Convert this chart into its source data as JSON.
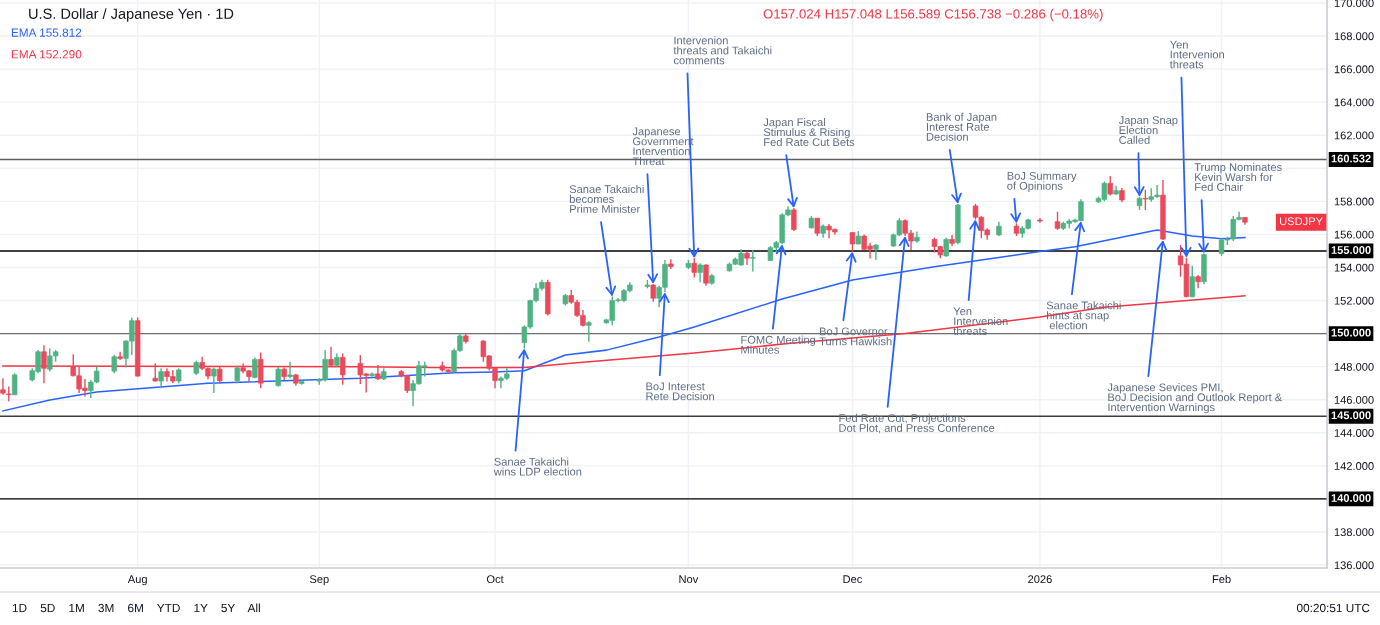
{
  "chart_data": {
    "type": "candlestick",
    "title": "U.S. Dollar / Japanese Yen · 1D",
    "subtitle": "O157.024 H157.048 L156.589 C156.738 −0.286 (−0.18%)",
    "x": [
      "2025-07-09",
      "2025-07-10",
      "2025-07-11",
      "2025-07-14",
      "2025-07-15",
      "2025-07-16",
      "2025-07-17",
      "2025-07-18",
      "2025-07-21",
      "2025-07-22",
      "2025-07-23",
      "2025-07-24",
      "2025-07-25",
      "2025-07-28",
      "2025-07-29",
      "2025-07-30",
      "2025-07-31",
      "2025-08-01",
      "2025-08-04",
      "2025-08-05",
      "2025-08-06",
      "2025-08-07",
      "2025-08-08",
      "2025-08-11",
      "2025-08-12",
      "2025-08-13",
      "2025-08-14",
      "2025-08-15",
      "2025-08-18",
      "2025-08-19",
      "2025-08-20",
      "2025-08-21",
      "2025-08-22",
      "2025-08-25",
      "2025-08-26",
      "2025-08-27",
      "2025-08-28",
      "2025-08-29",
      "2025-09-01",
      "2025-09-02",
      "2025-09-03",
      "2025-09-04",
      "2025-09-05",
      "2025-09-08",
      "2025-09-09",
      "2025-09-10",
      "2025-09-11",
      "2025-09-12",
      "2025-09-15",
      "2025-09-16",
      "2025-09-17",
      "2025-09-18",
      "2025-09-19",
      "2025-09-22",
      "2025-09-23",
      "2025-09-24",
      "2025-09-25",
      "2025-09-26",
      "2025-09-29",
      "2025-09-30",
      "2025-10-01",
      "2025-10-02",
      "2025-10-03",
      "2025-10-06",
      "2025-10-07",
      "2025-10-08",
      "2025-10-09",
      "2025-10-10",
      "2025-10-13",
      "2025-10-14",
      "2025-10-15",
      "2025-10-16",
      "2025-10-17",
      "2025-10-20",
      "2025-10-21",
      "2025-10-22",
      "2025-10-23",
      "2025-10-24",
      "2025-10-27",
      "2025-10-28",
      "2025-10-29",
      "2025-10-30",
      "2025-10-31",
      "2025-11-03",
      "2025-11-04",
      "2025-11-05",
      "2025-11-06",
      "2025-11-07",
      "2025-11-10",
      "2025-11-11",
      "2025-11-12",
      "2025-11-13",
      "2025-11-14",
      "2025-11-17",
      "2025-11-18",
      "2025-11-19",
      "2025-11-20",
      "2025-11-21",
      "2025-11-24",
      "2025-11-25",
      "2025-11-26",
      "2025-11-27",
      "2025-11-28",
      "2025-12-01",
      "2025-12-02",
      "2025-12-03",
      "2025-12-04",
      "2025-12-05",
      "2025-12-08",
      "2025-12-09",
      "2025-12-10",
      "2025-12-11",
      "2025-12-12",
      "2025-12-15",
      "2025-12-16",
      "2025-12-17",
      "2025-12-18",
      "2025-12-19",
      "2025-12-22",
      "2025-12-23",
      "2025-12-24",
      "2025-12-26",
      "2025-12-29",
      "2025-12-30",
      "2025-12-31",
      "2026-01-02",
      "2026-01-05",
      "2026-01-06",
      "2026-01-07",
      "2026-01-08",
      "2026-01-09",
      "2026-01-12",
      "2026-01-13",
      "2026-01-14",
      "2026-01-15",
      "2026-01-16",
      "2026-01-19",
      "2026-01-20",
      "2026-01-21",
      "2026-01-22",
      "2026-01-23",
      "2026-01-26",
      "2026-01-27",
      "2026-01-28",
      "2026-01-29",
      "2026-01-30",
      "2026-02-02",
      "2026-02-03",
      "2026-02-04",
      "2026-02-05",
      "2026-02-06"
    ],
    "ohlc": [
      [
        146.6,
        147.3,
        146.3,
        146.4
      ],
      [
        146.35,
        146.8,
        145.9,
        146.3
      ],
      [
        146.3,
        147.6,
        146.3,
        147.5
      ],
      [
        147.2,
        147.9,
        147.1,
        147.75
      ],
      [
        147.7,
        149.0,
        147.6,
        148.9
      ],
      [
        148.9,
        149.3,
        147.0,
        147.9
      ],
      [
        147.85,
        149.1,
        147.7,
        148.65
      ],
      [
        148.65,
        149.0,
        148.3,
        148.9
      ],
      [
        148.0,
        148.75,
        147.4,
        147.45
      ],
      [
        147.45,
        148.05,
        146.4,
        146.65
      ],
      [
        146.7,
        147.25,
        146.2,
        146.55
      ],
      [
        146.55,
        147.2,
        146.1,
        147.07
      ],
      [
        147.07,
        148.0,
        147.0,
        147.73
      ],
      [
        147.73,
        148.7,
        147.6,
        148.6
      ],
      [
        148.6,
        148.9,
        148.4,
        148.5
      ],
      [
        148.5,
        149.6,
        147.95,
        149.55
      ],
      [
        149.55,
        150.96,
        148.7,
        150.78
      ],
      [
        150.78,
        150.98,
        147.4,
        147.43
      ],
      [
        147.3,
        148.2,
        147.1,
        147.13
      ],
      [
        147.13,
        147.9,
        146.7,
        147.7
      ],
      [
        147.7,
        147.9,
        147.1,
        147.4
      ],
      [
        147.4,
        147.8,
        147.0,
        147.13
      ],
      [
        147.13,
        147.9,
        147.0,
        147.8
      ],
      [
        147.6,
        148.35,
        147.5,
        148.25
      ],
      [
        148.25,
        148.6,
        147.8,
        147.9
      ],
      [
        147.9,
        147.95,
        147.23,
        147.43
      ],
      [
        147.43,
        147.95,
        146.4,
        147.85
      ],
      [
        147.85,
        148.0,
        147.0,
        147.15
      ],
      [
        147.15,
        148.05,
        147.0,
        147.93
      ],
      [
        147.93,
        148.2,
        147.6,
        147.73
      ],
      [
        147.75,
        147.8,
        147.1,
        147.4
      ],
      [
        147.35,
        148.55,
        147.3,
        148.44
      ],
      [
        148.44,
        148.85,
        146.7,
        147.0
      ],
      [
        146.85,
        148.0,
        146.8,
        147.85
      ],
      [
        147.85,
        147.95,
        147.2,
        147.4
      ],
      [
        147.4,
        148.3,
        147.3,
        147.5
      ],
      [
        147.5,
        147.55,
        146.85,
        147.0
      ],
      [
        146.98,
        147.2,
        146.9,
        147.1
      ],
      [
        147.13,
        147.3,
        146.9,
        147.23
      ],
      [
        147.2,
        149.0,
        147.1,
        148.44
      ],
      [
        148.44,
        149.2,
        148.0,
        148.08
      ],
      [
        148.08,
        148.8,
        148.0,
        148.56
      ],
      [
        148.56,
        148.8,
        146.9,
        147.5
      ],
      [
        148.2,
        148.7,
        146.95,
        147.5
      ],
      [
        147.56,
        147.6,
        146.43,
        147.46
      ],
      [
        147.46,
        147.65,
        147.4,
        147.56
      ],
      [
        147.56,
        148.1,
        147.2,
        147.26
      ],
      [
        147.26,
        147.9,
        147.2,
        147.7
      ],
      [
        147.7,
        147.8,
        147.35,
        147.44
      ],
      [
        147.46,
        147.5,
        146.4,
        146.55
      ],
      [
        146.55,
        147.2,
        145.6,
        146.97
      ],
      [
        146.97,
        148.35,
        146.9,
        148.06
      ],
      [
        148.0,
        148.3,
        147.4,
        148.06
      ],
      [
        148.05,
        148.3,
        147.7,
        147.8
      ],
      [
        147.8,
        147.85,
        147.65,
        147.7
      ],
      [
        147.7,
        149.1,
        147.6,
        148.97
      ],
      [
        148.97,
        150.02,
        148.9,
        149.86
      ],
      [
        149.86,
        150.02,
        149.4,
        149.52
      ],
      [
        149.55,
        149.6,
        148.3,
        148.6
      ],
      [
        148.65,
        148.7,
        147.76,
        147.9
      ],
      [
        147.9,
        147.95,
        146.7,
        147.16
      ],
      [
        147.16,
        147.4,
        146.7,
        147.3
      ],
      [
        147.3,
        147.9,
        147.2,
        147.56
      ],
      [
        149.46,
        150.5,
        149.1,
        150.4
      ],
      [
        150.4,
        152.05,
        150.3,
        152.0
      ],
      [
        152.0,
        153.05,
        151.9,
        152.74
      ],
      [
        152.74,
        153.25,
        152.6,
        153.1
      ],
      [
        153.1,
        153.25,
        151.1,
        151.19
      ],
      [
        151.8,
        152.4,
        151.7,
        152.3
      ],
      [
        152.3,
        152.64,
        151.8,
        151.9
      ],
      [
        151.9,
        152.04,
        151.0,
        151.1
      ],
      [
        151.1,
        151.43,
        150.43,
        150.5
      ],
      [
        150.5,
        150.75,
        149.5,
        150.66
      ],
      [
        150.66,
        150.9,
        150.6,
        150.83
      ],
      [
        150.8,
        152.24,
        150.5,
        152.0
      ],
      [
        152.0,
        152.15,
        151.9,
        152.04
      ],
      [
        152.0,
        152.7,
        151.9,
        152.6
      ],
      [
        152.6,
        153.1,
        152.5,
        152.94
      ],
      [
        152.85,
        153.25,
        152.74,
        152.94
      ],
      [
        152.94,
        153.0,
        151.93,
        152.14
      ],
      [
        152.14,
        152.9,
        151.6,
        152.8
      ],
      [
        152.8,
        154.45,
        152.5,
        154.19
      ],
      [
        154.21,
        154.5,
        153.9,
        154.05
      ],
      [
        154.01,
        154.45,
        153.9,
        154.25
      ],
      [
        154.25,
        154.56,
        153.4,
        153.7
      ],
      [
        153.7,
        154.25,
        153.1,
        154.15
      ],
      [
        154.15,
        154.2,
        152.9,
        153.05
      ],
      [
        153.05,
        153.6,
        152.95,
        153.5
      ],
      [
        153.8,
        154.3,
        153.75,
        154.2
      ],
      [
        154.2,
        154.6,
        154.15,
        154.5
      ],
      [
        154.15,
        155.1,
        154.1,
        154.86
      ],
      [
        154.86,
        154.96,
        154.15,
        154.56
      ],
      [
        154.56,
        155.05,
        153.75,
        154.6
      ],
      [
        154.42,
        155.3,
        154.4,
        155.2
      ],
      [
        155.2,
        155.6,
        154.9,
        155.5
      ],
      [
        155.5,
        157.28,
        155.4,
        157.18
      ],
      [
        157.18,
        157.7,
        157.1,
        157.48
      ],
      [
        157.48,
        157.6,
        156.2,
        156.3
      ],
      [
        156.4,
        157.1,
        156.35,
        156.98
      ],
      [
        156.98,
        157.0,
        155.9,
        156.07
      ],
      [
        156.07,
        156.6,
        155.8,
        156.5
      ],
      [
        156.5,
        156.63,
        155.77,
        156.27
      ],
      [
        156.3,
        156.35,
        156.0,
        156.15
      ],
      [
        156.11,
        156.15,
        154.96,
        155.42
      ],
      [
        155.42,
        156.2,
        155.4,
        155.9
      ],
      [
        155.9,
        156.0,
        155.05,
        155.1
      ],
      [
        155.3,
        155.5,
        154.55,
        155.1
      ],
      [
        155.1,
        155.4,
        154.46,
        155.36
      ],
      [
        155.3,
        156.05,
        155.25,
        155.97
      ],
      [
        155.97,
        156.98,
        155.9,
        156.83
      ],
      [
        156.83,
        156.92,
        155.9,
        156.07
      ],
      [
        156.07,
        156.27,
        155.05,
        155.6
      ],
      [
        155.6,
        156.17,
        155.5,
        155.83
      ],
      [
        155.7,
        155.8,
        154.9,
        155.26
      ],
      [
        155.26,
        155.3,
        154.56,
        154.76
      ],
      [
        154.7,
        155.8,
        154.65,
        155.7
      ],
      [
        155.7,
        155.97,
        155.3,
        155.46
      ],
      [
        155.5,
        157.85,
        155.4,
        157.78
      ],
      [
        157.72,
        157.85,
        156.9,
        157.04
      ],
      [
        157.04,
        157.1,
        155.77,
        156.23
      ],
      [
        156.27,
        156.37,
        155.67,
        155.97
      ],
      [
        155.97,
        156.77,
        155.9,
        156.5
      ],
      [
        156.5,
        156.67,
        155.9,
        156.07
      ],
      [
        156.07,
        156.5,
        155.8,
        156.37
      ],
      [
        156.37,
        156.95,
        156.3,
        156.88
      ],
      [
        156.87,
        157.0,
        156.7,
        156.81
      ],
      [
        156.77,
        157.37,
        156.27,
        156.37
      ],
      [
        156.37,
        156.77,
        156.27,
        156.67
      ],
      [
        156.67,
        156.91,
        156.37,
        156.81
      ],
      [
        156.77,
        156.95,
        156.7,
        156.87
      ],
      [
        156.83,
        158.12,
        156.8,
        157.98
      ],
      [
        157.98,
        158.28,
        157.9,
        158.18
      ],
      [
        158.12,
        159.2,
        158.0,
        159.09
      ],
      [
        159.09,
        159.53,
        158.35,
        158.44
      ],
      [
        158.44,
        158.95,
        158.4,
        158.65
      ],
      [
        158.65,
        158.8,
        157.95,
        158.08
      ],
      [
        157.74,
        158.28,
        157.48,
        158.18
      ],
      [
        158.18,
        158.7,
        157.48,
        158.14
      ],
      [
        158.12,
        158.79,
        157.98,
        158.28
      ],
      [
        158.28,
        158.99,
        158.2,
        158.38
      ],
      [
        158.38,
        159.29,
        155.66,
        155.72
      ],
      [
        154.7,
        155.36,
        153.44,
        154.15
      ],
      [
        154.2,
        154.6,
        152.2,
        152.23
      ],
      [
        152.23,
        154.1,
        152.2,
        153.44
      ],
      [
        153.44,
        153.54,
        152.74,
        153.14
      ],
      [
        153.14,
        154.85,
        152.99,
        154.79
      ],
      [
        154.85,
        155.76,
        154.7,
        155.66
      ],
      [
        155.66,
        155.86,
        155.36,
        155.72
      ],
      [
        155.72,
        157.11,
        155.6,
        156.91
      ],
      [
        156.91,
        157.37,
        156.85,
        157.03
      ],
      [
        157.024,
        157.048,
        156.589,
        156.738
      ]
    ],
    "colors": [
      "#ea4a5c",
      "#ea4a5c",
      "#4fb282",
      "#4fb282",
      "#4fb282",
      "#ea4a5c",
      "#4fb282",
      "#4fb282",
      "#ea4a5c",
      "#ea4a5c",
      "#ea4a5c",
      "#4fb282",
      "#4fb282",
      "#4fb282",
      "#ea4a5c",
      "#4fb282",
      "#4fb282",
      "#ea4a5c",
      "#ea4a5c",
      "#4fb282",
      "#ea4a5c",
      "#ea4a5c",
      "#4fb282",
      "#4fb282",
      "#ea4a5c",
      "#ea4a5c",
      "#4fb282",
      "#ea4a5c",
      "#4fb282",
      "#ea4a5c",
      "#ea4a5c",
      "#4fb282",
      "#ea4a5c",
      "#4fb282",
      "#ea4a5c",
      "#4fb282",
      "#ea4a5c",
      "#4fb282",
      "#4fb282",
      "#4fb282",
      "#ea4a5c",
      "#4fb282",
      "#ea4a5c",
      "#ea4a5c",
      "#ea4a5c",
      "#4fb282",
      "#ea4a5c",
      "#4fb282",
      "#ea4a5c",
      "#ea4a5c",
      "#4fb282",
      "#4fb282",
      "#4fb282",
      "#ea4a5c",
      "#ea4a5c",
      "#4fb282",
      "#4fb282",
      "#ea4a5c",
      "#ea4a5c",
      "#ea4a5c",
      "#ea4a5c",
      "#4fb282",
      "#4fb282",
      "#4fb282",
      "#4fb282",
      "#4fb282",
      "#4fb282",
      "#ea4a5c",
      "#4fb282",
      "#ea4a5c",
      "#ea4a5c",
      "#ea4a5c",
      "#4fb282",
      "#4fb282",
      "#4fb282",
      "#4fb282",
      "#4fb282",
      "#4fb282",
      "#4fb282",
      "#ea4a5c",
      "#4fb282",
      "#4fb282",
      "#ea4a5c",
      "#4fb282",
      "#ea4a5c",
      "#4fb282",
      "#ea4a5c",
      "#4fb282",
      "#4fb282",
      "#4fb282",
      "#4fb282",
      "#ea4a5c",
      "#4fb282",
      "#4fb282",
      "#4fb282",
      "#4fb282",
      "#4fb282",
      "#ea4a5c",
      "#4fb282",
      "#ea4a5c",
      "#4fb282",
      "#ea4a5c",
      "#ea4a5c",
      "#ea4a5c",
      "#4fb282",
      "#ea4a5c",
      "#ea4a5c",
      "#4fb282",
      "#4fb282",
      "#4fb282",
      "#ea4a5c",
      "#ea4a5c",
      "#4fb282",
      "#ea4a5c",
      "#ea4a5c",
      "#4fb282",
      "#ea4a5c",
      "#4fb282",
      "#ea4a5c",
      "#ea4a5c",
      "#ea4a5c",
      "#4fb282",
      "#ea4a5c",
      "#4fb282",
      "#4fb282",
      "#ea4a5c",
      "#ea4a5c",
      "#4fb282",
      "#4fb282",
      "#4fb282",
      "#4fb282",
      "#4fb282",
      "#4fb282",
      "#ea4a5c",
      "#4fb282",
      "#ea4a5c",
      "#4fb282",
      "#ea4a5c",
      "#4fb282",
      "#4fb282",
      "#ea4a5c",
      "#ea4a5c",
      "#ea4a5c",
      "#4fb282",
      "#ea4a5c",
      "#4fb282",
      "#4fb282",
      "#4fb282",
      "#4fb282",
      "#4fb282",
      "#ea4a5c"
    ],
    "series": [
      {
        "type": "line",
        "name": "EMA 155.812",
        "color": "#2962ff",
        "x": [
          "2025-07-09",
          "2025-07-17",
          "2025-07-25",
          "2025-07-31",
          "2025-08-13",
          "2025-09-08",
          "2025-09-24",
          "2025-10-01",
          "2025-10-06",
          "2025-10-13",
          "2025-10-20",
          "2025-10-29",
          "2025-11-04",
          "2025-11-19",
          "2025-12-01",
          "2025-12-15",
          "2026-01-02",
          "2026-01-08",
          "2026-01-22",
          "2026-01-28",
          "2026-02-02",
          "2026-02-06"
        ],
        "values": [
          145.32,
          145.98,
          146.47,
          146.63,
          146.99,
          147.3,
          147.63,
          147.68,
          147.75,
          148.7,
          149.0,
          149.8,
          150.4,
          152.09,
          153.24,
          154.05,
          154.96,
          155.26,
          156.27,
          155.9,
          155.74,
          155.81
        ]
      },
      {
        "type": "line",
        "name": "EMA 152.290",
        "color": "#f23645",
        "x": [
          "2025-07-09",
          "2025-09-08",
          "2025-09-24",
          "2025-10-06",
          "2025-10-15",
          "2025-11-04",
          "2025-11-20",
          "2025-12-10",
          "2026-01-02",
          "2026-01-13",
          "2026-02-06"
        ],
        "values": [
          148.04,
          148.0,
          147.94,
          147.95,
          148.24,
          148.83,
          149.4,
          150.0,
          151.0,
          151.6,
          152.29
        ]
      }
    ],
    "xlim": [
      "2025-07-08T12:00",
      "2026-02-20"
    ],
    "xticks": [
      {
        "value": "2025-08-01",
        "label": "Aug"
      },
      {
        "value": "2025-09-01",
        "label": "Sep"
      },
      {
        "value": "2025-10-01",
        "label": "Oct"
      },
      {
        "value": "2025-11-03",
        "label": "Nov"
      },
      {
        "value": "2025-12-01",
        "label": "Dec"
      },
      {
        "value": "2026-01-02",
        "label": "2026"
      },
      {
        "value": "2026-02-02",
        "label": "Feb"
      }
    ],
    "ylim": [
      135.82,
      170.18
    ],
    "yticks": [
      {
        "value": 136,
        "label": "136.000"
      },
      {
        "value": 138,
        "label": "138.000"
      },
      {
        "value": 140,
        "label": null
      },
      {
        "value": 142,
        "label": "142.000"
      },
      {
        "value": 144,
        "label": "144.000"
      },
      {
        "value": 146,
        "label": "146.000"
      },
      {
        "value": 148,
        "label": "148.000"
      },
      {
        "value": 150,
        "label": null
      },
      {
        "value": 152,
        "label": "152.000"
      },
      {
        "value": 154,
        "label": "154.000"
      },
      {
        "value": 156,
        "label": "156.000"
      },
      {
        "value": 158,
        "label": "158.000"
      },
      {
        "value": 160,
        "label": null
      },
      {
        "value": 162,
        "label": "162.000"
      },
      {
        "value": 164,
        "label": "164.000"
      },
      {
        "value": 166,
        "label": "166.000"
      },
      {
        "value": 168,
        "label": "168.000"
      },
      {
        "value": 170,
        "label": "170.000"
      }
    ],
    "ref_lines": [
      {
        "axis": "y",
        "value": 160.532,
        "label": "160.532",
        "color": "#5d5d5d"
      },
      {
        "axis": "y",
        "value": 155,
        "label": "155.000",
        "color": "#000000"
      },
      {
        "axis": "y",
        "value": 150,
        "label": "150.000",
        "color": "#6e6e6e"
      },
      {
        "axis": "y",
        "value": 145,
        "label": "145.000",
        "color": "#3c3c3c"
      },
      {
        "axis": "y",
        "value": 140,
        "label": "140.000",
        "color": "#000000"
      }
    ],
    "annotations": [
      {
        "text": "Sanae Takaichi\nwins LDP election",
        "x": "2025-10-06",
        "y": 149.1
      },
      {
        "text": "Sanae Takaichi\nbecomes\nPrime Minister",
        "x": "2025-10-21",
        "y": 152.24
      },
      {
        "text": "Japanese\nGovernment\nIntervention\nThreat",
        "x": "2025-10-28",
        "y": 153.0
      },
      {
        "text": "Intervenion\nthreats and Takaichi\ncomments",
        "x": "2025-11-04",
        "y": 154.56
      },
      {
        "text": "BoJ Interest\nRete Decision",
        "x": "2025-10-30",
        "y": 152.5
      },
      {
        "text": "Japan Fiscal\nStimulus & Rising\nFed Rate Cut Bets",
        "x": "2025-11-21",
        "y": 157.6
      },
      {
        "text": "FOMC Meeting\nMinutes",
        "x": "2025-11-19",
        "y": 155.4
      },
      {
        "text": "BoJ Governor\nTurns Hawkish",
        "x": "2025-12-01",
        "y": 154.96
      },
      {
        "text": "Fed Rate Cut, Projections\nDot Plot, and Press Conference",
        "x": "2025-12-10",
        "y": 155.9
      },
      {
        "text": "Bank of Japan\nInterest Rate\nDecision",
        "x": "2025-12-19",
        "y": 157.85
      },
      {
        "text": "Yen\nIntervenion\nthreats",
        "x": "2025-12-22",
        "y": 156.9
      },
      {
        "text": "BoJ Summary\nof Opinions",
        "x": "2025-12-29",
        "y": 156.67
      },
      {
        "text": "Sanae Takaichi\nhints at snap\n election",
        "x": "2026-01-09",
        "y": 156.8
      },
      {
        "text": "Japan Snap\nElection\nCalled",
        "x": "2026-01-19",
        "y": 158.28
      },
      {
        "text": "Yen\nIntervenion\nthreats",
        "x": "2026-01-27",
        "y": 154.6
      },
      {
        "text": "Japanese Sevices PMI,\nBoJ Decision and Outlook Report &\nIntervention Warnings",
        "x": "2026-01-23",
        "y": 155.66
      },
      {
        "text": "Trump Nominates\nKevin Warsh for\nFed Chair",
        "x": "2026-01-30",
        "y": 154.85
      },
      "USDJPY",
      "1D    5D    1M    3M    6M    YTD    1Y    5Y    All",
      "00:20:51 UTC"
    ],
    "grid": true,
    "legend": "top left"
  }
}
